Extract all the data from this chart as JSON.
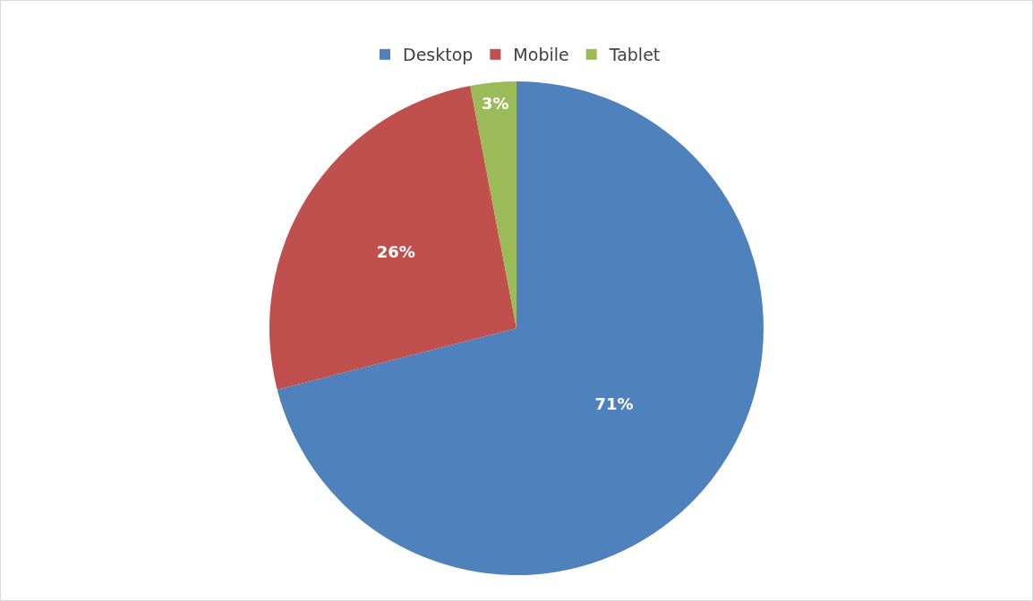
{
  "chart_data": {
    "type": "pie",
    "categories": [
      "Desktop",
      "Mobile",
      "Tablet"
    ],
    "values": [
      71,
      26,
      3
    ],
    "colors": [
      "#4f81bd",
      "#c0504d",
      "#9bbb59"
    ],
    "value_labels": [
      "71%",
      "26%",
      "3%"
    ],
    "legend": "top"
  }
}
